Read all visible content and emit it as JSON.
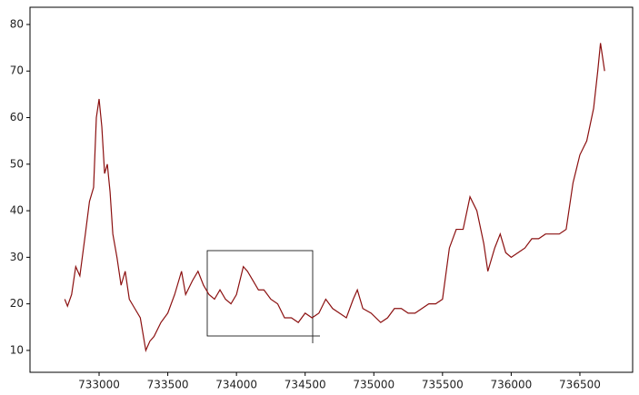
{
  "chart_data": {
    "type": "line",
    "x": [
      732750,
      732770,
      732800,
      732830,
      732860,
      732900,
      732930,
      732960,
      732980,
      733000,
      733020,
      733040,
      733060,
      733080,
      733100,
      733130,
      733160,
      733190,
      733220,
      733260,
      733300,
      733340,
      733370,
      733400,
      733450,
      733500,
      733550,
      733600,
      733630,
      733680,
      733720,
      733760,
      733800,
      733840,
      733880,
      733920,
      733960,
      734000,
      734050,
      734080,
      734120,
      734160,
      734200,
      734250,
      734300,
      734350,
      734400,
      734450,
      734500,
      734550,
      734600,
      734650,
      734700,
      734750,
      734800,
      734850,
      734880,
      734920,
      734980,
      735050,
      735100,
      735150,
      735200,
      735250,
      735300,
      735350,
      735400,
      735450,
      735500,
      735550,
      735600,
      735650,
      735700,
      735750,
      735800,
      735830,
      735880,
      735920,
      735960,
      736000,
      736050,
      736100,
      736150,
      736200,
      736250,
      736300,
      736350,
      736400,
      736450,
      736500,
      736550,
      736600,
      736630,
      736650,
      736680
    ],
    "series": [
      {
        "color": "#8b1010",
        "values": [
          21,
          19.5,
          22,
          28,
          26,
          35,
          42,
          45,
          60,
          64,
          58,
          48,
          50,
          44,
          35,
          30,
          24,
          27,
          21,
          19,
          17,
          10,
          12,
          13,
          16,
          18,
          22,
          27,
          22,
          25,
          27,
          24,
          22,
          21,
          23,
          21,
          20,
          22,
          28,
          27,
          25,
          23,
          23,
          21,
          20,
          17,
          17,
          16,
          18,
          17,
          18,
          21,
          19,
          18,
          17,
          21,
          23,
          19,
          18,
          16,
          17,
          19,
          19,
          18,
          18,
          19,
          20,
          20,
          21,
          32,
          36,
          36,
          43,
          40,
          33,
          27,
          32,
          35,
          31,
          30,
          31,
          32,
          34,
          34,
          35,
          35,
          35,
          36,
          46,
          52,
          55,
          62,
          70,
          76,
          70
        ]
      }
    ],
    "xlim": [
      732497,
      736884
    ],
    "xticks": [
      733000,
      733500,
      734000,
      734500,
      735000,
      735500,
      736000,
      736500
    ],
    "ylim": [
      5.3,
      83.7
    ],
    "yticks": [
      10,
      20,
      30,
      40,
      50,
      60,
      70,
      80
    ]
  }
}
